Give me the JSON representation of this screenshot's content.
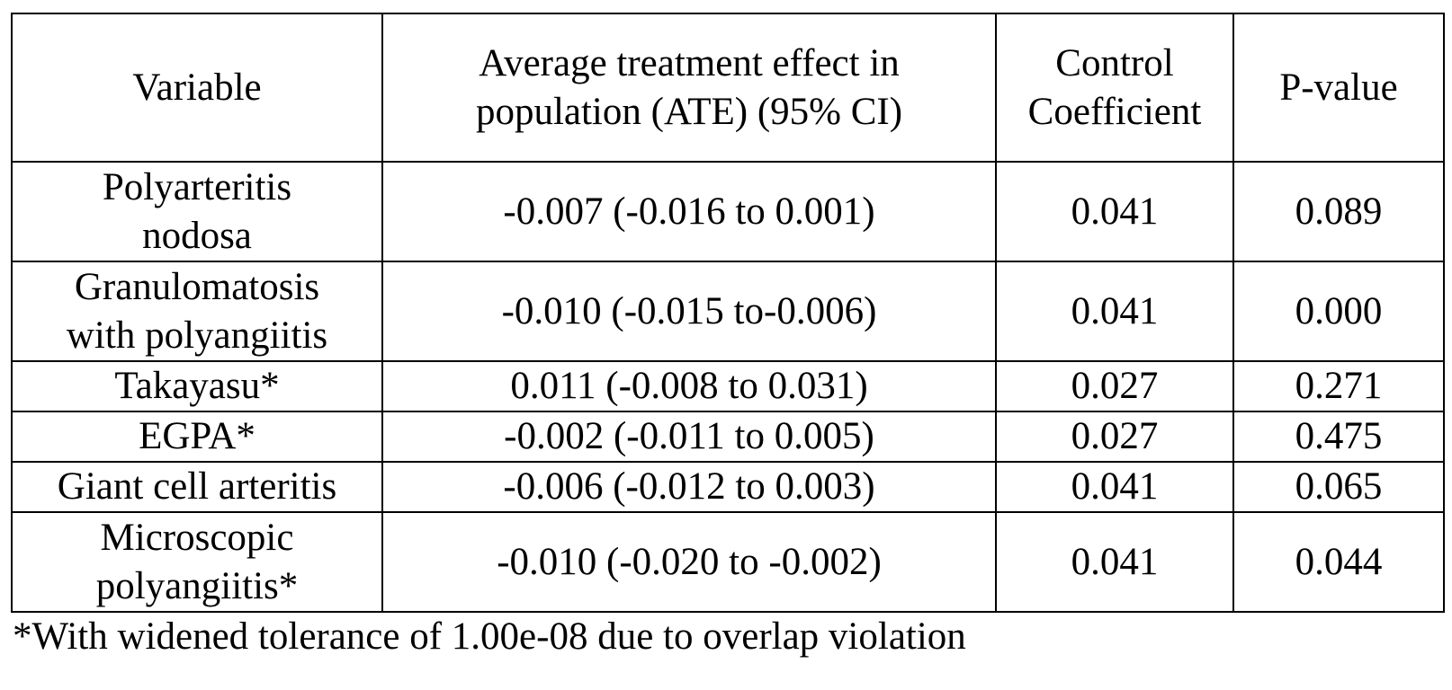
{
  "table": {
    "headers": [
      "Variable",
      "Average treatment effect in population (ATE) (95% CI)",
      "Control Coefficient",
      "P-value"
    ],
    "rows": [
      {
        "variable": "Polyarteritis nodosa",
        "ate": "-0.007 (-0.016 to 0.001)",
        "control": "0.041",
        "p_value": "0.089"
      },
      {
        "variable": "Granulomatosis with polyangiitis",
        "ate": "-0.010 (-0.015 to-0.006)",
        "control": "0.041",
        "p_value": "0.000"
      },
      {
        "variable": "Takayasu*",
        "ate": "0.011 (-0.008 to 0.031)",
        "control": "0.027",
        "p_value": "0.271"
      },
      {
        "variable": "EGPA*",
        "ate": "-0.002 (-0.011 to 0.005)",
        "control": "0.027",
        "p_value": "0.475"
      },
      {
        "variable": "Giant cell arteritis",
        "ate": "-0.006 (-0.012 to 0.003)",
        "control": "0.041",
        "p_value": "0.065"
      },
      {
        "variable": "Microscopic polyangiitis*",
        "ate": "-0.010 (-0.020 to -0.002)",
        "control": "0.041",
        "p_value": "0.044"
      }
    ]
  },
  "footnote": "*With widened tolerance of 1.00e-08 due to overlap violation"
}
